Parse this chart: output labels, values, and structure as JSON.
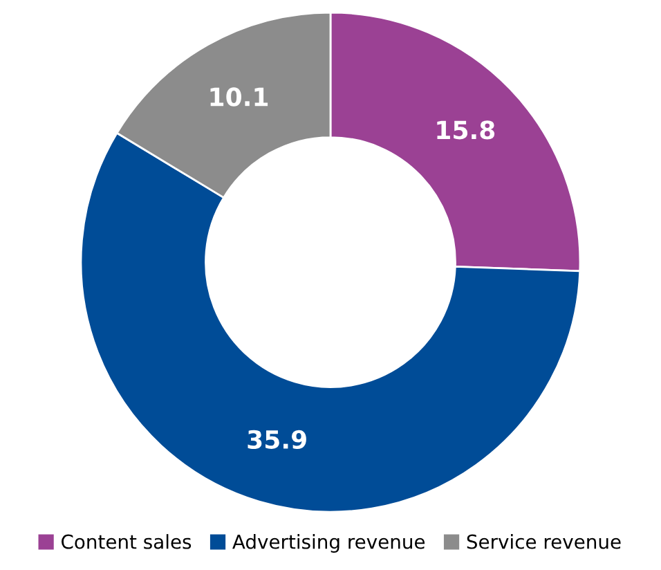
{
  "chart_data": {
    "type": "donut",
    "categories": [
      "Content sales",
      "Advertising revenue",
      "Service revenue"
    ],
    "values": [
      15.8,
      35.9,
      10.1
    ],
    "colors": [
      "#9b4194",
      "#004c97",
      "#8c8c8c"
    ],
    "data_labels": true,
    "legend": "bottom"
  }
}
